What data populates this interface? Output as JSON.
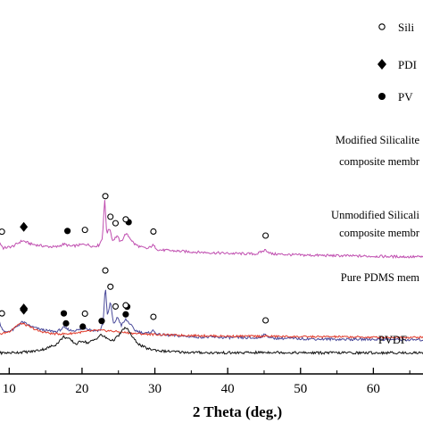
{
  "chart_data": {
    "type": "line",
    "xlabel": "2 Theta (deg.)",
    "xlim": [
      5,
      70
    ],
    "xticks": [
      10,
      20,
      30,
      40,
      50,
      60
    ],
    "legend": [
      {
        "marker": "circle-open",
        "label": "Sili"
      },
      {
        "marker": "diamond",
        "label": "PDI"
      },
      {
        "marker": "circle-filled",
        "label": "PV"
      }
    ],
    "legend_position": "top-right",
    "series": [
      {
        "label_lines": [
          "Modified Silicalite",
          "composite membr"
        ],
        "color": "#c04fb0",
        "points": [
          [
            5,
            162
          ],
          [
            7.5,
            165
          ],
          [
            8.5,
            178
          ],
          [
            9.2,
            165
          ],
          [
            10.5,
            168
          ],
          [
            11.8,
            178
          ],
          [
            13,
            172
          ],
          [
            14,
            170
          ],
          [
            15,
            168
          ],
          [
            16.5,
            167
          ],
          [
            17.5,
            172
          ],
          [
            18.5,
            168
          ],
          [
            19.5,
            170
          ],
          [
            20.5,
            172
          ],
          [
            21.5,
            168
          ],
          [
            22.3,
            170
          ],
          [
            22.8,
            182
          ],
          [
            23.1,
            250
          ],
          [
            23.4,
            190
          ],
          [
            23.8,
            200
          ],
          [
            24.2,
            178
          ],
          [
            24.8,
            186
          ],
          [
            25.3,
            175
          ],
          [
            26,
            190
          ],
          [
            26.5,
            184
          ],
          [
            27.2,
            172
          ],
          [
            28,
            167
          ],
          [
            29,
            164
          ],
          [
            29.7,
            170
          ],
          [
            30.5,
            162
          ],
          [
            33,
            160
          ],
          [
            36,
            158
          ],
          [
            40,
            156
          ],
          [
            44,
            155
          ],
          [
            45.2,
            162
          ],
          [
            46,
            155
          ],
          [
            50,
            153
          ],
          [
            55,
            152
          ],
          [
            60,
            151
          ],
          [
            65,
            150
          ],
          [
            70,
            150
          ]
        ],
        "markers": [
          {
            "type": "circle-open",
            "x": 9
          },
          {
            "type": "diamond",
            "x": 12
          },
          {
            "type": "circle-filled",
            "x": 18
          },
          {
            "type": "circle-open",
            "x": 20.4
          },
          {
            "type": "circle-open",
            "x": 23.2
          },
          {
            "type": "circle-open",
            "x": 23.9
          },
          {
            "type": "circle-open",
            "x": 24.6
          },
          {
            "type": "circle-filled",
            "x": 26.4
          },
          {
            "type": "circle-open",
            "x": 26
          },
          {
            "type": "circle-open",
            "x": 29.8
          },
          {
            "type": "circle-open",
            "x": 45.2
          }
        ]
      },
      {
        "label_lines": [
          "Unmodified Silicali",
          "composite membr"
        ],
        "color": "#4a4a9a",
        "points": [
          [
            5,
            120
          ],
          [
            7.5,
            122
          ],
          [
            8.7,
            140
          ],
          [
            9.3,
            124
          ],
          [
            10.5,
            128
          ],
          [
            11.8,
            142
          ],
          [
            13,
            134
          ],
          [
            14,
            130
          ],
          [
            15,
            127
          ],
          [
            16.5,
            125
          ],
          [
            17.5,
            132
          ],
          [
            18.5,
            127
          ],
          [
            19.5,
            128
          ],
          [
            20.5,
            132
          ],
          [
            21.5,
            127
          ],
          [
            22.5,
            128
          ],
          [
            22.9,
            140
          ],
          [
            23.2,
            206
          ],
          [
            23.5,
            150
          ],
          [
            23.9,
            178
          ],
          [
            24.3,
            138
          ],
          [
            24.9,
            150
          ],
          [
            25.4,
            136
          ],
          [
            26,
            146
          ],
          [
            26.5,
            140
          ],
          [
            27.2,
            128
          ],
          [
            28,
            124
          ],
          [
            29,
            122
          ],
          [
            29.7,
            127
          ],
          [
            30.5,
            120
          ],
          [
            33,
            118
          ],
          [
            36,
            116
          ],
          [
            40,
            115
          ],
          [
            44,
            114
          ],
          [
            45.2,
            120
          ],
          [
            46,
            114
          ],
          [
            50,
            113
          ],
          [
            55,
            112
          ],
          [
            60,
            112
          ],
          [
            65,
            111
          ],
          [
            70,
            111
          ]
        ],
        "markers": [
          {
            "type": "circle-open",
            "x": 9
          },
          {
            "type": "diamond",
            "x": 12
          },
          {
            "type": "circle-filled",
            "x": 17.5
          },
          {
            "type": "circle-open",
            "x": 20.4
          },
          {
            "type": "circle-open",
            "x": 23.2
          },
          {
            "type": "circle-open",
            "x": 23.9
          },
          {
            "type": "circle-open",
            "x": 24.6
          },
          {
            "type": "circle-filled",
            "x": 26.2
          },
          {
            "type": "circle-open",
            "x": 26
          },
          {
            "type": "circle-open",
            "x": 29.8
          },
          {
            "type": "circle-open",
            "x": 45.2
          }
        ]
      },
      {
        "label_lines": [
          "Pure PDMS mem"
        ],
        "color": "#e03a2a",
        "points": [
          [
            5,
            52
          ],
          [
            8,
            55
          ],
          [
            10,
            62
          ],
          [
            11.2,
            74
          ],
          [
            11.8,
            76
          ],
          [
            12.5,
            72
          ],
          [
            14,
            63
          ],
          [
            16,
            58
          ],
          [
            18,
            58
          ],
          [
            20,
            61
          ],
          [
            22,
            64
          ],
          [
            24,
            63
          ],
          [
            26,
            60
          ],
          [
            28,
            58
          ],
          [
            32,
            56
          ],
          [
            36,
            55
          ],
          [
            40,
            54
          ],
          [
            45,
            54
          ],
          [
            50,
            53
          ],
          [
            55,
            53
          ],
          [
            60,
            52
          ],
          [
            65,
            52
          ],
          [
            70,
            52
          ]
        ],
        "markers": [
          {
            "type": "diamond",
            "x": 12
          }
        ]
      },
      {
        "label_lines": [
          "PVDF"
        ],
        "color": "#111111",
        "points": [
          [
            5,
            4
          ],
          [
            10,
            5
          ],
          [
            13,
            7
          ],
          [
            15,
            12
          ],
          [
            16.5,
            20
          ],
          [
            17.5,
            33
          ],
          [
            18.3,
            28
          ],
          [
            19.2,
            20
          ],
          [
            20,
            26
          ],
          [
            20.8,
            22
          ],
          [
            21.8,
            28
          ],
          [
            22.6,
            36
          ],
          [
            23.4,
            30
          ],
          [
            24.2,
            26
          ],
          [
            25,
            34
          ],
          [
            25.8,
            48
          ],
          [
            26.4,
            44
          ],
          [
            27,
            30
          ],
          [
            28,
            18
          ],
          [
            29,
            12
          ],
          [
            31,
            8
          ],
          [
            34,
            6
          ],
          [
            38,
            5
          ],
          [
            42,
            5
          ],
          [
            46,
            6
          ],
          [
            50,
            5
          ],
          [
            55,
            5
          ],
          [
            60,
            5
          ],
          [
            65,
            5
          ],
          [
            70,
            5
          ]
        ],
        "markers": [
          {
            "type": "circle-filled",
            "x": 17.8
          },
          {
            "type": "circle-filled",
            "x": 20.1
          },
          {
            "type": "circle-filled",
            "x": 22.7
          },
          {
            "type": "circle-filled",
            "x": 26
          }
        ]
      }
    ]
  }
}
